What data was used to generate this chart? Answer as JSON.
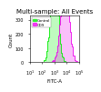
{
  "title": "Multi-sample: All Events",
  "xlabel": "FITC-A",
  "ylabel": "Count",
  "legend_entries": [
    "Control",
    "CD9"
  ],
  "background_color": "#ffffff",
  "control_peak_log": 3.0,
  "cd9_peak_log": 3.85,
  "xlim_log": [
    1.0,
    5.0
  ],
  "ylim": [
    0,
    330
  ],
  "control_color": "#00ee00",
  "cd9_color": "#ee00ee",
  "title_fontsize": 5,
  "axis_fontsize": 4,
  "tick_fontsize": 3.5
}
